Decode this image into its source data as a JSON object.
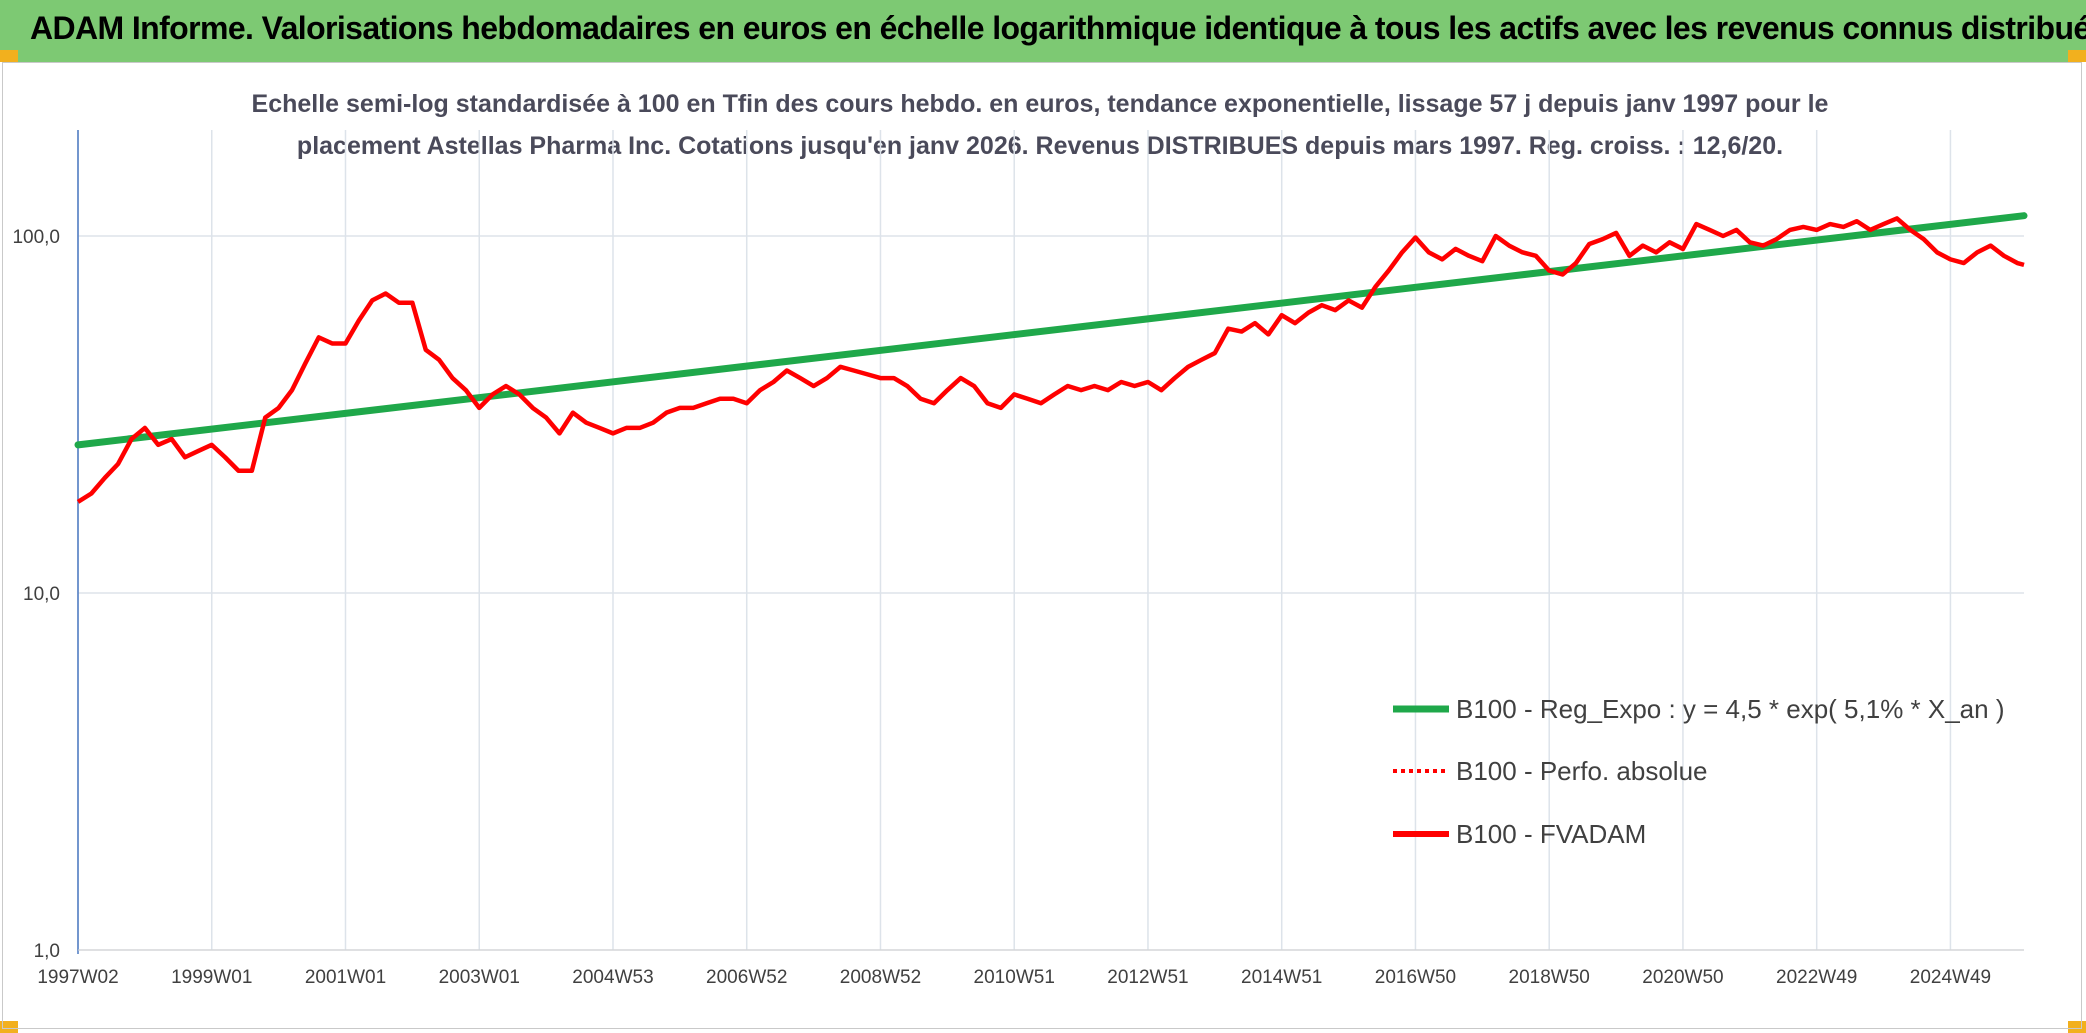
{
  "header": {
    "title": "ADAM Informe. Valorisations hebdomadaires en euros en échelle logarithmique identique à tous les actifs avec les revenus connus distribués",
    "background": "#7dc973"
  },
  "chart_data": {
    "type": "line",
    "title_line1": "Echelle semi-log standardisée à 100 en Tfin des cours hebdo. en euros, tendance exponentielle, lissage 57 j depuis janv 1997 pour le",
    "title_line2": "placement Astellas Pharma Inc. Cotations jusqu'en janv 2026. Revenus DISTRIBUES depuis mars 1997. Reg. croiss. : 12,6/20.",
    "y_scale": "log",
    "ylim": [
      1,
      100
    ],
    "y_ticks": [
      {
        "value": 1,
        "label": "1,0"
      },
      {
        "value": 10,
        "label": "10,0"
      },
      {
        "value": 100,
        "label": "100,0"
      }
    ],
    "x_range": [
      1997.0,
      2026.1
    ],
    "x_ticks": [
      {
        "value": 1997.0,
        "label": "1997W02"
      },
      {
        "value": 1999.0,
        "label": "1999W01"
      },
      {
        "value": 2001.0,
        "label": "2001W01"
      },
      {
        "value": 2003.0,
        "label": "2003W01"
      },
      {
        "value": 2005.0,
        "label": "2004W53"
      },
      {
        "value": 2007.0,
        "label": "2006W52"
      },
      {
        "value": 2009.0,
        "label": "2008W52"
      },
      {
        "value": 2011.0,
        "label": "2010W51"
      },
      {
        "value": 2013.0,
        "label": "2012W51"
      },
      {
        "value": 2015.0,
        "label": "2014W51"
      },
      {
        "value": 2017.0,
        "label": "2016W50"
      },
      {
        "value": 2019.0,
        "label": "2018W50"
      },
      {
        "value": 2021.0,
        "label": "2020W50"
      },
      {
        "value": 2023.0,
        "label": "2022W49"
      },
      {
        "value": 2025.0,
        "label": "2024W49"
      }
    ],
    "grid": true,
    "legend_position": "bottom-right",
    "series": [
      {
        "name": "B100 - Reg_Expo : y = 4,5 * exp( 5,1% *  X_an )",
        "color": "#1fa84a",
        "style": "solid",
        "points": [
          [
            1997.0,
            26
          ],
          [
            2026.1,
            114
          ]
        ]
      },
      {
        "name": "B100 - Perfo. absolue",
        "color": "#ff0000",
        "style": "dotted",
        "points": []
      },
      {
        "name": "B100 - FVADAM",
        "color": "#ff0000",
        "style": "solid",
        "points": [
          [
            1997.0,
            18
          ],
          [
            1997.2,
            19
          ],
          [
            1997.4,
            21
          ],
          [
            1997.6,
            23
          ],
          [
            1997.8,
            27
          ],
          [
            1998.0,
            29
          ],
          [
            1998.2,
            26
          ],
          [
            1998.4,
            27
          ],
          [
            1998.6,
            24
          ],
          [
            1998.8,
            25
          ],
          [
            1999.0,
            26
          ],
          [
            1999.2,
            24
          ],
          [
            1999.4,
            22
          ],
          [
            1999.6,
            22
          ],
          [
            1999.8,
            31
          ],
          [
            2000.0,
            33
          ],
          [
            2000.2,
            37
          ],
          [
            2000.4,
            44
          ],
          [
            2000.6,
            52
          ],
          [
            2000.8,
            50
          ],
          [
            2001.0,
            50
          ],
          [
            2001.2,
            58
          ],
          [
            2001.4,
            66
          ],
          [
            2001.6,
            69
          ],
          [
            2001.8,
            65
          ],
          [
            2002.0,
            65
          ],
          [
            2002.2,
            48
          ],
          [
            2002.4,
            45
          ],
          [
            2002.6,
            40
          ],
          [
            2002.8,
            37
          ],
          [
            2003.0,
            33
          ],
          [
            2003.2,
            36
          ],
          [
            2003.4,
            38
          ],
          [
            2003.6,
            36
          ],
          [
            2003.8,
            33
          ],
          [
            2004.0,
            31
          ],
          [
            2004.2,
            28
          ],
          [
            2004.4,
            32
          ],
          [
            2004.6,
            30
          ],
          [
            2004.8,
            29
          ],
          [
            2005.0,
            28
          ],
          [
            2005.2,
            29
          ],
          [
            2005.4,
            29
          ],
          [
            2005.6,
            30
          ],
          [
            2005.8,
            32
          ],
          [
            2006.0,
            33
          ],
          [
            2006.2,
            33
          ],
          [
            2006.4,
            34
          ],
          [
            2006.6,
            35
          ],
          [
            2006.8,
            35
          ],
          [
            2007.0,
            34
          ],
          [
            2007.2,
            37
          ],
          [
            2007.4,
            39
          ],
          [
            2007.6,
            42
          ],
          [
            2007.8,
            40
          ],
          [
            2008.0,
            38
          ],
          [
            2008.2,
            40
          ],
          [
            2008.4,
            43
          ],
          [
            2008.6,
            42
          ],
          [
            2008.8,
            41
          ],
          [
            2009.0,
            40
          ],
          [
            2009.2,
            40
          ],
          [
            2009.4,
            38
          ],
          [
            2009.6,
            35
          ],
          [
            2009.8,
            34
          ],
          [
            2010.0,
            37
          ],
          [
            2010.2,
            40
          ],
          [
            2010.4,
            38
          ],
          [
            2010.6,
            34
          ],
          [
            2010.8,
            33
          ],
          [
            2011.0,
            36
          ],
          [
            2011.2,
            35
          ],
          [
            2011.4,
            34
          ],
          [
            2011.6,
            36
          ],
          [
            2011.8,
            38
          ],
          [
            2012.0,
            37
          ],
          [
            2012.2,
            38
          ],
          [
            2012.4,
            37
          ],
          [
            2012.6,
            39
          ],
          [
            2012.8,
            38
          ],
          [
            2013.0,
            39
          ],
          [
            2013.2,
            37
          ],
          [
            2013.4,
            40
          ],
          [
            2013.6,
            43
          ],
          [
            2013.8,
            45
          ],
          [
            2014.0,
            47
          ],
          [
            2014.2,
            55
          ],
          [
            2014.4,
            54
          ],
          [
            2014.6,
            57
          ],
          [
            2014.8,
            53
          ],
          [
            2015.0,
            60
          ],
          [
            2015.2,
            57
          ],
          [
            2015.4,
            61
          ],
          [
            2015.6,
            64
          ],
          [
            2015.8,
            62
          ],
          [
            2016.0,
            66
          ],
          [
            2016.2,
            63
          ],
          [
            2016.4,
            72
          ],
          [
            2016.6,
            80
          ],
          [
            2016.8,
            90
          ],
          [
            2017.0,
            99
          ],
          [
            2017.2,
            90
          ],
          [
            2017.4,
            86
          ],
          [
            2017.6,
            92
          ],
          [
            2017.8,
            88
          ],
          [
            2018.0,
            85
          ],
          [
            2018.2,
            100
          ],
          [
            2018.4,
            94
          ],
          [
            2018.6,
            90
          ],
          [
            2018.8,
            88
          ],
          [
            2019.0,
            80
          ],
          [
            2019.2,
            78
          ],
          [
            2019.4,
            84
          ],
          [
            2019.6,
            95
          ],
          [
            2019.8,
            98
          ],
          [
            2020.0,
            102
          ],
          [
            2020.2,
            88
          ],
          [
            2020.4,
            94
          ],
          [
            2020.6,
            90
          ],
          [
            2020.8,
            96
          ],
          [
            2021.0,
            92
          ],
          [
            2021.2,
            108
          ],
          [
            2021.4,
            104
          ],
          [
            2021.6,
            100
          ],
          [
            2021.8,
            104
          ],
          [
            2022.0,
            96
          ],
          [
            2022.2,
            94
          ],
          [
            2022.4,
            98
          ],
          [
            2022.6,
            104
          ],
          [
            2022.8,
            106
          ],
          [
            2023.0,
            104
          ],
          [
            2023.2,
            108
          ],
          [
            2023.4,
            106
          ],
          [
            2023.6,
            110
          ],
          [
            2023.8,
            104
          ],
          [
            2024.0,
            108
          ],
          [
            2024.2,
            112
          ],
          [
            2024.4,
            104
          ],
          [
            2024.6,
            98
          ],
          [
            2024.8,
            90
          ],
          [
            2025.0,
            86
          ],
          [
            2025.2,
            84
          ],
          [
            2025.4,
            90
          ],
          [
            2025.6,
            94
          ],
          [
            2025.8,
            88
          ],
          [
            2026.0,
            84
          ],
          [
            2026.1,
            83
          ]
        ]
      }
    ]
  }
}
